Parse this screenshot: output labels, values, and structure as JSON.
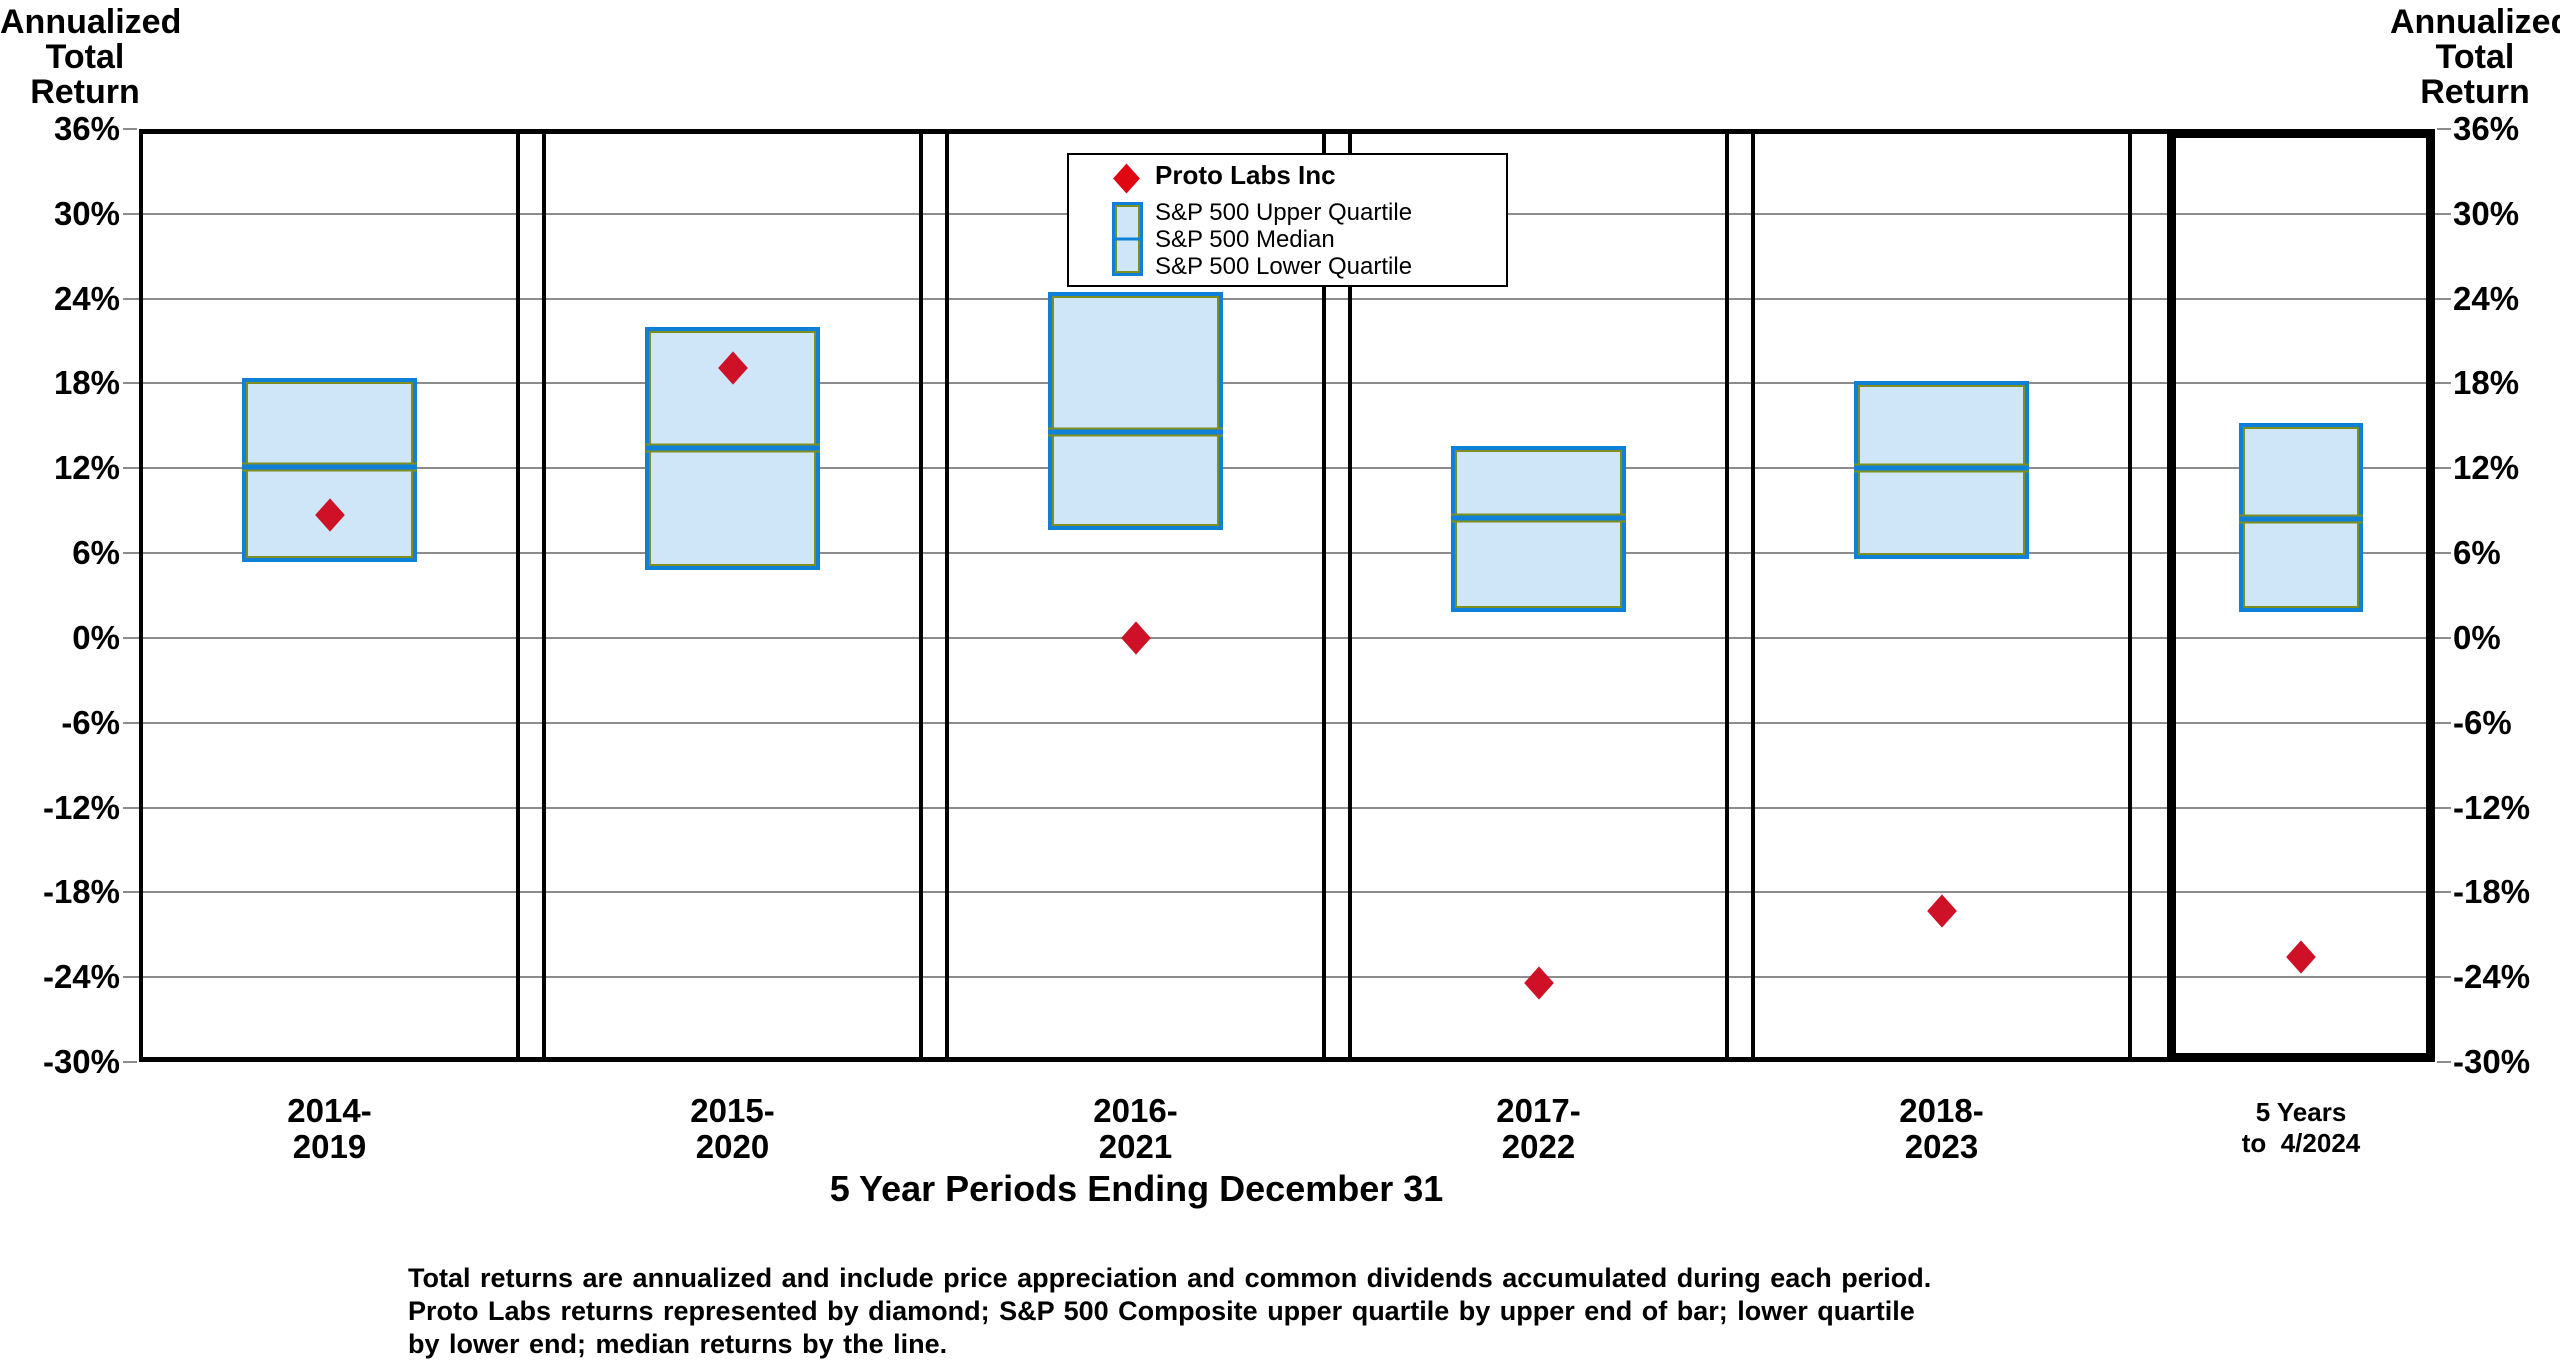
{
  "left_axis_title_lines": [
    "Annualized",
    "Total",
    "Return"
  ],
  "right_axis_title_lines": [
    "Annualized",
    "Total",
    "Return"
  ],
  "legend": {
    "proto_label": "Proto Labs Inc",
    "quartile_labels": [
      "S&P 500 Upper Quartile",
      "S&P 500 Median",
      "S&P 500 Lower Quartile"
    ]
  },
  "x_axis": {
    "title": "5 Year Periods Ending December 31",
    "category_label_lines": [
      [
        "2014-",
        "2019"
      ],
      [
        "2015-",
        "2020"
      ],
      [
        "2016-",
        "2021"
      ],
      [
        "2017-",
        "2022"
      ],
      [
        "2018-",
        "2023"
      ],
      [
        "5 Years",
        "to  4/2024"
      ]
    ]
  },
  "footnote_lines": [
    "Total returns are annualized and include price appreciation and common dividends accumulated during each period.",
    "Proto Labs returns represented by diamond; S&P 500 Composite upper quartile by upper end of bar; lower quartile",
    "by lower end; median returns by the line."
  ],
  "chart_data": {
    "type": "boxplot",
    "title": "",
    "xlabel": "5 Year Periods Ending December 31",
    "ylabel": "Annualized Total Return",
    "categories": [
      "2014-2019",
      "2015-2020",
      "2016-2021",
      "2017-2022",
      "2018-2023",
      "5 Years to 4/2024"
    ],
    "y_tick_labels": [
      "36%",
      "30%",
      "24%",
      "18%",
      "12%",
      "6%",
      "0%",
      "-6%",
      "-12%",
      "-18%",
      "-24%",
      "-30%"
    ],
    "y_tick_values": [
      36,
      30,
      24,
      18,
      12,
      6,
      0,
      -6,
      -12,
      -18,
      -24,
      -30
    ],
    "ylim": [
      -30,
      36
    ],
    "grid_step": 6,
    "grid_on": true,
    "legend_position": "top-center",
    "series": [
      {
        "name": "Proto Labs Inc",
        "style": "diamond-marker",
        "values": [
          8.7,
          19.1,
          0.0,
          -24.4,
          -19.3,
          -22.6
        ]
      },
      {
        "name": "S&P 500 Upper Quartile",
        "style": "box-top",
        "values": [
          18.4,
          22.0,
          24.5,
          13.6,
          18.2,
          15.2
        ]
      },
      {
        "name": "S&P 500 Median",
        "style": "box-median-line",
        "values": [
          12.1,
          13.4,
          14.6,
          8.5,
          12.0,
          8.4
        ]
      },
      {
        "name": "S&P 500 Lower Quartile",
        "style": "box-bottom",
        "values": [
          5.4,
          4.8,
          7.6,
          1.8,
          5.6,
          1.8
        ]
      }
    ],
    "colors": {
      "diamond": "#CE1126",
      "box_fill": "#CEE6F8",
      "box_border": "#0F80D7",
      "box_inner_edge": "#7F8F1F",
      "gridline": "#8C8C8C",
      "frame": "#000000",
      "background": "#FFFFFF"
    }
  }
}
